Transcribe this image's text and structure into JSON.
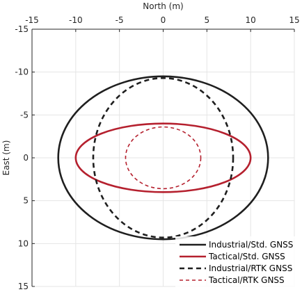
{
  "chart_data": {
    "type": "line",
    "xlabel": "North (m)",
    "ylabel": "East (m)",
    "xlim": [
      -15,
      15
    ],
    "ylim": [
      -15,
      15
    ],
    "y_axis_direction": "down",
    "x_axis_position": "top",
    "grid": true,
    "xticks": [
      "-15",
      "-10",
      "-5",
      "0",
      "5",
      "10",
      "15"
    ],
    "yticks": [
      "-15",
      "-10",
      "-5",
      "0",
      "5",
      "10",
      "15"
    ],
    "legend_position": "bottom-right",
    "series": [
      {
        "name": "Industrial/Std. GNSS",
        "shape": "ellipse",
        "center": [
          0,
          0
        ],
        "semi_axis_north": 12.0,
        "semi_axis_east": 9.5,
        "color": "#1f1f1f",
        "dash": "solid"
      },
      {
        "name": "Tactical/Std. GNSS",
        "shape": "ellipse",
        "center": [
          0,
          0
        ],
        "semi_axis_north": 10.0,
        "semi_axis_east": 4.0,
        "color": "#b5202e",
        "dash": "solid"
      },
      {
        "name": "Industrial/RTK GNSS",
        "shape": "ellipse",
        "center": [
          0,
          0
        ],
        "semi_axis_north": 8.0,
        "semi_axis_east": 9.3,
        "color": "#1f1f1f",
        "dash": "dashed"
      },
      {
        "name": "Tactical/RTK GNSS",
        "shape": "ellipse",
        "center": [
          0,
          0
        ],
        "semi_axis_north": 4.3,
        "semi_axis_east": 3.6,
        "color": "#b5202e",
        "dash": "dashed"
      }
    ]
  }
}
